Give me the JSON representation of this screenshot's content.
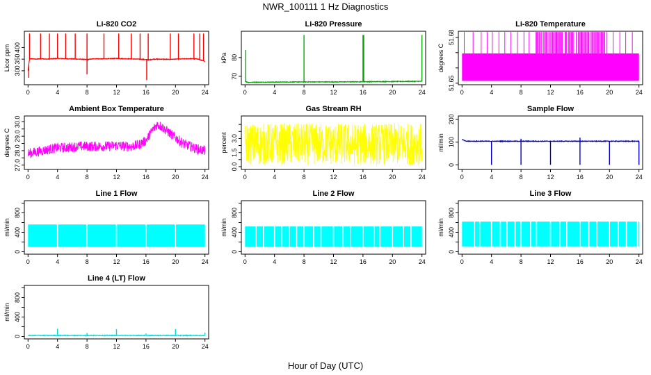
{
  "figure": {
    "title": "NWR_100111  1 Hz Diagnostics",
    "xlabel": "Hour of Day (UTC)"
  },
  "chart_data": [
    {
      "type": "line",
      "id": "li820-co2",
      "title": "Li-820 CO2",
      "xlabel": "",
      "ylabel": "Licor ppm",
      "color": "#ff0000",
      "xlim": [
        -0.5,
        24.5
      ],
      "xticks": [
        0,
        4,
        8,
        12,
        16,
        20,
        24
      ],
      "ylim": [
        240,
        470
      ],
      "yticks": [
        300,
        350,
        400
      ],
      "x": [
        0,
        0.2,
        0.5,
        1,
        1.5,
        2,
        2.5,
        3,
        3.5,
        4,
        5,
        6,
        7,
        8,
        8.5,
        9,
        10,
        11,
        12,
        13,
        14,
        15,
        16,
        16.5,
        17,
        18,
        19,
        20,
        21,
        22,
        23,
        24
      ],
      "y": [
        300,
        350,
        352,
        350,
        351,
        352,
        350,
        351,
        352,
        353,
        352,
        351,
        350,
        348,
        350,
        352,
        351,
        352,
        353,
        352,
        351,
        350,
        348,
        347,
        350,
        350,
        349,
        350,
        351,
        352,
        351,
        340
      ],
      "spikes_x": [
        0.2,
        1.7,
        2.9,
        4.0,
        5.1,
        6.4,
        8.0,
        10.3,
        12.3,
        14.0,
        15.2,
        16.3,
        19.3,
        20.4,
        22.5,
        23.3,
        23.8
      ],
      "spikes_y": [
        460,
        460,
        460,
        460,
        460,
        460,
        460,
        460,
        460,
        460,
        460,
        460,
        460,
        460,
        460,
        460,
        460
      ],
      "dips_x": [
        0.1,
        8.0,
        16.1
      ],
      "dips_y": [
        270,
        285,
        260
      ]
    },
    {
      "type": "line",
      "id": "li820-pressure",
      "title": "Li-820 Pressure",
      "xlabel": "",
      "ylabel": "kPa",
      "color": "#00aa00",
      "xlim": [
        -0.5,
        24.5
      ],
      "xticks": [
        0,
        4,
        8,
        12,
        16,
        20,
        24
      ],
      "ylim": [
        65.5,
        94
      ],
      "yticks": [
        70,
        80
      ],
      "x": [
        0,
        0.2,
        0.4,
        1,
        4,
        8,
        12,
        16,
        20,
        24
      ],
      "y": [
        67.5,
        67,
        66.7,
        66.8,
        66.9,
        67,
        67,
        67.1,
        67.2,
        67.3
      ],
      "spikes_x": [
        0.1,
        8.0,
        16.0,
        16.1,
        24.0
      ],
      "spikes_y": [
        84,
        92,
        92,
        92,
        92
      ]
    },
    {
      "type": "area",
      "id": "li820-temperature",
      "title": "Li-820 Temperature",
      "xlabel": "",
      "ylabel": "degrees C",
      "color": "#ff00ff",
      "xlim": [
        -0.5,
        24.5
      ],
      "xticks": [
        0,
        4,
        8,
        12,
        16,
        20,
        24
      ],
      "ylim": [
        51.649,
        51.684
      ],
      "yticks": [
        51.65,
        51.66,
        51.67,
        51.68
      ],
      "tick_labels": [
        "51.65",
        "",
        "",
        "51.68"
      ],
      "band": [
        51.6515,
        51.6695
      ],
      "spike_top": 51.6835,
      "spikes_x": [
        0.3,
        1.5,
        2.6,
        3.4,
        4.1,
        5.0,
        5.8,
        6.6,
        7.5,
        8.4,
        9.1,
        10.2,
        10.8,
        11.5,
        12.2,
        12.8,
        13.4,
        14.1,
        14.9,
        15.5,
        16.2,
        17.1,
        17.6,
        18.3,
        19.0,
        19.6,
        20.5,
        21.4,
        22.2,
        23.1
      ],
      "dense_ranges": [
        [
          10.0,
          19.4
        ]
      ]
    },
    {
      "type": "line",
      "id": "ambient-box-temperature",
      "title": "Ambient Box Temperature",
      "xlabel": "",
      "ylabel": "degrees C",
      "color": "#ff00ff",
      "xlim": [
        -0.5,
        24.5
      ],
      "xticks": [
        0,
        4,
        8,
        12,
        16,
        20,
        24
      ],
      "ylim": [
        26.7,
        30.4
      ],
      "yticks": [
        27.0,
        27.5,
        28.0,
        28.5,
        29.0,
        29.5,
        30.0
      ],
      "tick_labels": [
        "27.0",
        "",
        "28.0",
        "",
        "29.0",
        "",
        "30.0"
      ],
      "x": [
        0,
        1,
        2,
        3,
        4,
        5,
        6,
        7,
        8,
        9,
        10,
        11,
        12,
        13,
        14,
        15,
        16,
        17,
        17.5,
        18,
        19,
        20,
        21,
        22,
        23,
        24
      ],
      "y": [
        27.8,
        27.9,
        28.0,
        28.1,
        28.2,
        28.2,
        28.25,
        28.3,
        28.3,
        28.3,
        28.3,
        28.3,
        28.35,
        28.3,
        28.3,
        28.4,
        28.7,
        29.5,
        29.8,
        29.7,
        29.3,
        28.9,
        28.5,
        28.3,
        28.1,
        28.0
      ],
      "noise": 0.35
    },
    {
      "type": "line",
      "id": "gas-stream-rh",
      "title": "Gas Stream RH",
      "xlabel": "",
      "ylabel": "percent",
      "color": "#ffff00",
      "xlim": [
        -0.5,
        24.5
      ],
      "xticks": [
        0,
        4,
        8,
        12,
        16,
        20,
        24
      ],
      "ylim": [
        -0.2,
        3.6
      ],
      "yticks": [
        0.0,
        0.5,
        1.0,
        1.5,
        2.0,
        2.5,
        3.0
      ],
      "tick_labels": [
        "0.0",
        "",
        "1.5",
        "",
        "3.0",
        "",
        ""
      ],
      "x": [
        0,
        24
      ],
      "y": [
        1.6,
        1.6
      ],
      "noise": 1.5
    },
    {
      "type": "line",
      "id": "sample-flow",
      "title": "Sample Flow",
      "xlabel": "",
      "ylabel": "ml/min",
      "color": "#0000cc",
      "xlim": [
        -0.5,
        24.5
      ],
      "xticks": [
        0,
        4,
        8,
        12,
        16,
        20,
        24
      ],
      "ylim": [
        -20,
        215
      ],
      "yticks": [
        0,
        100,
        200
      ],
      "x": [
        0,
        0.5,
        24
      ],
      "y": [
        112,
        104,
        104
      ],
      "dips_x": [
        4.0,
        8.0,
        12.0,
        16.0,
        20.0,
        24.0
      ],
      "dips_y": [
        0,
        0,
        0,
        0,
        0,
        0
      ],
      "spikes_x": [
        8.0,
        16.0
      ],
      "spikes_y": [
        115,
        120
      ]
    },
    {
      "type": "area",
      "id": "line-1-flow",
      "title": "Line 1 Flow",
      "xlabel": "",
      "ylabel": "ml/min",
      "color": "#00ffff",
      "xlim": [
        -0.5,
        24.5
      ],
      "xticks": [
        0,
        4,
        8,
        12,
        16,
        20,
        24
      ],
      "ylim": [
        -50,
        1050
      ],
      "yticks": [
        0,
        200,
        400,
        600,
        800,
        1000
      ],
      "tick_labels": [
        "0",
        "",
        "400",
        "",
        "800",
        ""
      ],
      "band": [
        100,
        560
      ],
      "gaps_x": [
        4.0,
        8.0,
        12.0,
        16.0,
        20.0
      ]
    },
    {
      "type": "area",
      "id": "line-2-flow",
      "title": "Line 2 Flow",
      "xlabel": "",
      "ylabel": "ml/min",
      "color": "#00ffff",
      "xlim": [
        -0.5,
        24.5
      ],
      "xticks": [
        0,
        4,
        8,
        12,
        16,
        20,
        24
      ],
      "ylim": [
        -50,
        1050
      ],
      "yticks": [
        0,
        200,
        400,
        600,
        800,
        1000
      ],
      "tick_labels": [
        "0",
        "",
        "400",
        "",
        "800",
        ""
      ],
      "band": [
        100,
        520
      ],
      "gaps_x": [
        1.5,
        2.5,
        4.0,
        5.0,
        6.0,
        7.0,
        8.0,
        9.3,
        10.3,
        12.0,
        13.3,
        14.3,
        16.0,
        17.5,
        18.3,
        20.0,
        21.5,
        22.5
      ]
    },
    {
      "type": "area",
      "id": "line-3-flow",
      "title": "Line 3 Flow",
      "xlabel": "",
      "ylabel": "ml/min",
      "color": "#00ffff",
      "xlim": [
        -0.5,
        24.5
      ],
      "xticks": [
        0,
        4,
        8,
        12,
        16,
        20,
        24
      ],
      "ylim": [
        -50,
        1050
      ],
      "yticks": [
        0,
        200,
        400,
        600,
        800,
        1000
      ],
      "tick_labels": [
        "0",
        "",
        "400",
        "",
        "800",
        ""
      ],
      "band": [
        110,
        620
      ],
      "gaps_x": [
        1.7,
        2.4,
        4.0,
        5.2,
        6.1,
        7.2,
        8.0,
        9.3,
        10.1,
        12.0,
        13.3,
        14.2,
        16.0,
        17.2,
        18.3,
        20.0,
        21.2,
        22.3,
        23.8
      ]
    },
    {
      "type": "line",
      "id": "line-4-lt-flow",
      "title": "Line 4 (LT) Flow",
      "xlabel": "",
      "ylabel": "ml/min",
      "color": "#00dddd",
      "xlim": [
        -0.5,
        24.5
      ],
      "xticks": [
        0,
        4,
        8,
        12,
        16,
        20,
        24
      ],
      "ylim": [
        -50,
        1050
      ],
      "yticks": [
        0,
        200,
        400,
        600,
        800,
        1000
      ],
      "tick_labels": [
        "0",
        "",
        "400",
        "",
        "800",
        ""
      ],
      "x": [
        0,
        24
      ],
      "y": [
        20,
        20
      ],
      "spikes_x": [
        4.0,
        8.0,
        12.0,
        16.0,
        20.0,
        24.0
      ],
      "spikes_y": [
        160,
        70,
        150,
        60,
        150,
        80
      ]
    }
  ]
}
